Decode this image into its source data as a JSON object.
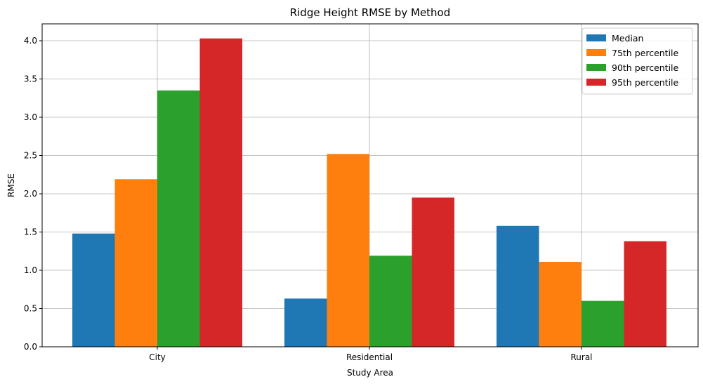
{
  "chart_data": {
    "type": "bar",
    "title": "Ridge Height RMSE by Method",
    "xlabel": "Study Area",
    "ylabel": "RMSE",
    "categories": [
      "City",
      "Residential",
      "Rural"
    ],
    "series": [
      {
        "name": "Median",
        "color": "#1f77b4",
        "values": [
          1.48,
          0.63,
          1.58
        ]
      },
      {
        "name": "75th percentile",
        "color": "#ff7f0e",
        "values": [
          2.19,
          2.52,
          1.11
        ]
      },
      {
        "name": "90th percentile",
        "color": "#2ca02c",
        "values": [
          3.35,
          1.19,
          0.6
        ]
      },
      {
        "name": "95th percentile",
        "color": "#d62728",
        "values": [
          4.03,
          1.95,
          1.38
        ]
      }
    ],
    "ylim": [
      0,
      4.22
    ],
    "yticks": [
      "0.0",
      "0.5",
      "1.0",
      "1.5",
      "2.0",
      "2.5",
      "3.0",
      "3.5",
      "4.0"
    ],
    "grid": true,
    "legend_position": "top-right"
  }
}
